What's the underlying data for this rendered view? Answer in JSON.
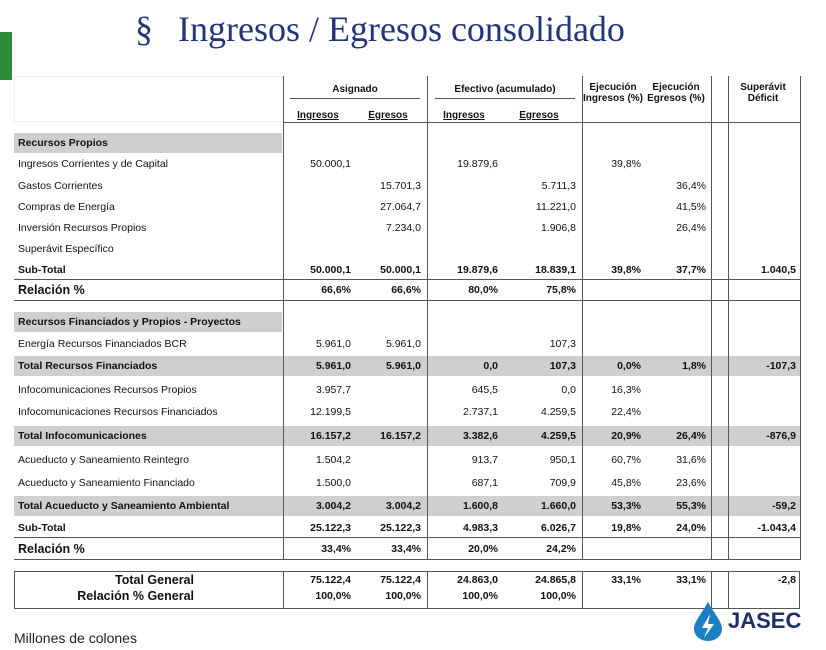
{
  "header": {
    "bullet": "§",
    "title": "Ingresos / Egresos consolidado"
  },
  "table": {
    "groups": [
      "Asignado",
      "Efectivo (acumulado)"
    ],
    "subheaders": [
      "Ingresos",
      "Egresos",
      "Ingresos",
      "Egresos"
    ],
    "columns": [
      "Ejecución Ingresos (%)",
      "Ejecución Egresos (%)",
      "Superávit Déficit"
    ],
    "rows": [
      [
        "Recursos Propios",
        null,
        null,
        null,
        null,
        null,
        null,
        null
      ],
      [
        "Ingresos Corrientes y de Capital",
        "50.000,1",
        null,
        "19.879,6",
        null,
        "39,8%",
        null,
        null
      ],
      [
        "Gastos Corrientes",
        null,
        "15.701,3",
        null,
        "5.711,3",
        null,
        "36,4%",
        null
      ],
      [
        "Compras de Energía",
        null,
        "27.064,7",
        null,
        "11.221,0",
        null,
        "41,5%",
        null
      ],
      [
        "Inversión Recursos Propios",
        null,
        "7.234,0",
        null,
        "1.906,8",
        null,
        "26,4%",
        null
      ],
      [
        "Superávit Específico",
        null,
        null,
        null,
        null,
        null,
        null,
        null
      ],
      [
        "Sub-Total",
        "50.000,1",
        "50.000,1",
        "19.879,6",
        "18.839,1",
        "39,8%",
        "37,7%",
        "1.040,5"
      ],
      [
        "Relación %",
        "66,6%",
        "66,6%",
        "80,0%",
        "75,8%",
        null,
        null,
        null
      ],
      [
        "Recursos Financiados y Propios - Proyectos",
        null,
        null,
        null,
        null,
        null,
        null,
        null
      ],
      [
        "Energía Recursos Financiados BCR",
        "5.961,0",
        "5.961,0",
        null,
        "107,3",
        null,
        null,
        null
      ],
      [
        "Total Recursos Financiados",
        "5.961,0",
        "5.961,0",
        "0,0",
        "107,3",
        "0,0%",
        "1,8%",
        "-107,3"
      ],
      [
        "Infocomunicaciones Recursos Propios",
        "3.957,7",
        null,
        "645,5",
        "0,0",
        "16,3%",
        null,
        null
      ],
      [
        "Infocomunicaciones Recursos Financiados",
        "12.199,5",
        null,
        "2.737,1",
        "4.259,5",
        "22,4%",
        null,
        null
      ],
      [
        "Total Infocomunicaciones",
        "16.157,2",
        "16.157,2",
        "3.382,6",
        "4.259,5",
        "20,9%",
        "26,4%",
        "-876,9"
      ],
      [
        "Acueducto y Saneamiento Reintegro",
        "1.504,2",
        null,
        "913,7",
        "950,1",
        "60,7%",
        "31,6%",
        null
      ],
      [
        "Acueducto y Saneamiento Financiado",
        "1.500,0",
        null,
        "687,1",
        "709,9",
        "45,8%",
        "23,6%",
        null
      ],
      [
        "Total Acueducto y Saneamiento Ambiental",
        "3.004,2",
        "3.004,2",
        "1.600,8",
        "1.660,0",
        "53,3%",
        "55,3%",
        "-59,2"
      ],
      [
        "Sub-Total",
        "25.122,3",
        "25.122,3",
        "4.983,3",
        "6.026,7",
        "19,8%",
        "24,0%",
        "-1.043,4"
      ],
      [
        "Relación %",
        "33,4%",
        "33,4%",
        "20,0%",
        "24,2%",
        null,
        null,
        null
      ]
    ],
    "total": [
      [
        "Total General",
        "75.122,4",
        "75.122,4",
        "24.863,0",
        "24.865,8",
        "33,1%",
        "33,1%",
        "-2,8"
      ],
      [
        "Relación % General",
        "100,0%",
        "100,0%",
        "100,0%",
        "100,0%",
        null,
        null,
        null
      ]
    ]
  },
  "footer": {
    "note": "Millones de colones",
    "logo": "JASEC"
  }
}
